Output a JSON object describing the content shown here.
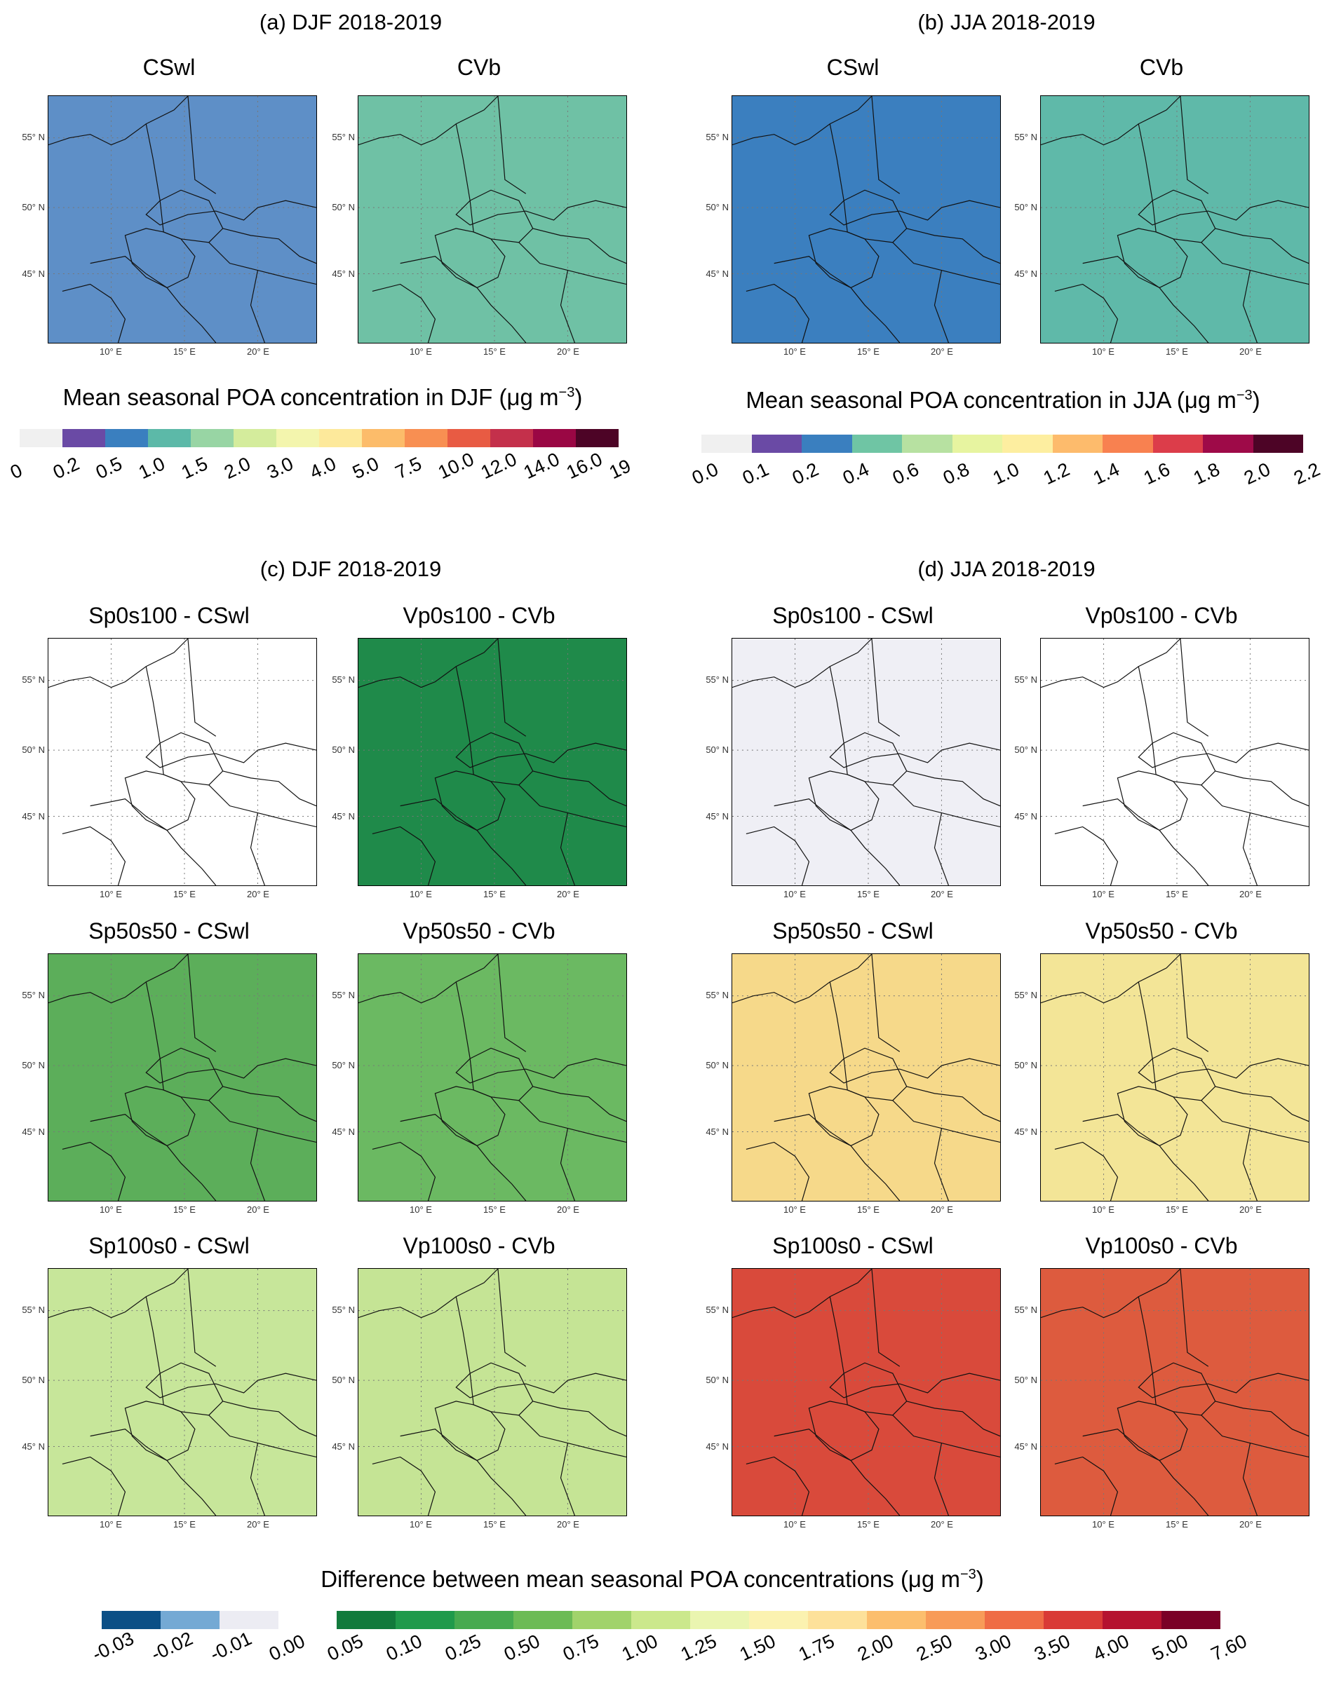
{
  "panels": {
    "a": {
      "title": "(a) DJF 2018-2019",
      "maps": [
        "CSwl",
        "CVb"
      ],
      "fill": [
        "#5e8fc7",
        "#6fc1a5"
      ]
    },
    "b": {
      "title": "(b) JJA 2018-2019",
      "maps": [
        "CSwl",
        "CVb"
      ],
      "fill": [
        "#3b7fbf",
        "#5fb9a9"
      ]
    },
    "c": {
      "title": "(c) DJF 2018-2019",
      "rows": [
        [
          "Sp0s100 - CSwl",
          "Vp0s100 - CVb"
        ],
        [
          "Sp50s50 - CSwl",
          "Vp50s50 - CVb"
        ],
        [
          "Sp100s0 - CSwl",
          "Vp100s0 - CVb"
        ]
      ],
      "fill": [
        [
          "#ffffff",
          "#1f8a4a"
        ],
        [
          "#5cae5a",
          "#6bb962"
        ],
        [
          "#c7e69a",
          "#c5e495"
        ]
      ]
    },
    "d": {
      "title": "(d) JJA 2018-2019",
      "rows": [
        [
          "Sp0s100 - CSwl",
          "Vp0s100 - CVb"
        ],
        [
          "Sp50s50 - CSwl",
          "Vp50s50 - CVb"
        ],
        [
          "Sp100s0 - CSwl",
          "Vp100s0 - CVb"
        ]
      ],
      "fill": [
        [
          "#efeff5",
          "#ffffff"
        ],
        [
          "#f6d98a",
          "#f3e597"
        ],
        [
          "#d94a3b",
          "#dd5b3e"
        ]
      ]
    }
  },
  "axes": {
    "lat_labels": [
      "55° N",
      "50° N",
      "45° N"
    ],
    "lon_labels": [
      "10° E",
      "15° E",
      "20° E"
    ]
  },
  "colorbars": {
    "djf": {
      "title": "Mean seasonal POA concentration in DJF (μg m",
      "exp": "−3",
      "close": ")",
      "ticks": [
        "0",
        "0.2",
        "0.5",
        "1.0",
        "1.5",
        "2.0",
        "3.0",
        "4.0",
        "5.0",
        "7.5",
        "10.0",
        "12.0",
        "14.0",
        "16.0",
        "19"
      ],
      "colors": [
        "#f0f0f0",
        "#6a4aa5",
        "#3a7fbf",
        "#5cb9a8",
        "#98d5a4",
        "#d4ec9c",
        "#f3f5ad",
        "#fde99b",
        "#fcbc6a",
        "#f88f52",
        "#e85b43",
        "#c4304b",
        "#9a0744",
        "#4d0426"
      ]
    },
    "jja": {
      "title": "Mean seasonal POA concentration in JJA (μg m",
      "exp": "−3",
      "close": ")",
      "ticks": [
        "0.0",
        "0.1",
        "0.2",
        "0.4",
        "0.6",
        "0.8",
        "1.0",
        "1.2",
        "1.4",
        "1.6",
        "1.8",
        "2.0",
        "2.2"
      ],
      "colors": [
        "#f0f0f0",
        "#6a4aa5",
        "#3a7fbf",
        "#6fc5a4",
        "#b7e1a1",
        "#e7f4a0",
        "#fdeea0",
        "#fdbb6c",
        "#f88150",
        "#dc3d4a",
        "#9e0a48",
        "#4d0426"
      ]
    },
    "diff": {
      "title": "Difference between mean seasonal POA concentrations (μg m",
      "exp": "−3",
      "close": ")",
      "neg_ticks": [
        "-0.03",
        "-0.02",
        "-0.01",
        "0.00"
      ],
      "neg_colors": [
        "#0b4f86",
        "#74a9d4",
        "#ececf3"
      ],
      "pos_ticks": [
        "0.05",
        "0.10",
        "0.25",
        "0.50",
        "0.75",
        "1.00",
        "1.25",
        "1.50",
        "1.75",
        "2.00",
        "2.50",
        "3.00",
        "3.50",
        "4.00",
        "5.00",
        "7.60"
      ],
      "pos_colors": [
        "#117a3c",
        "#1f9a4b",
        "#46aa4f",
        "#6cbb55",
        "#a1d36b",
        "#cbe88c",
        "#eaf5b0",
        "#fbf2b0",
        "#fde19a",
        "#fcbe6d",
        "#f89b58",
        "#ef6c45",
        "#d93a36",
        "#b5122f",
        "#7a0026"
      ]
    }
  }
}
